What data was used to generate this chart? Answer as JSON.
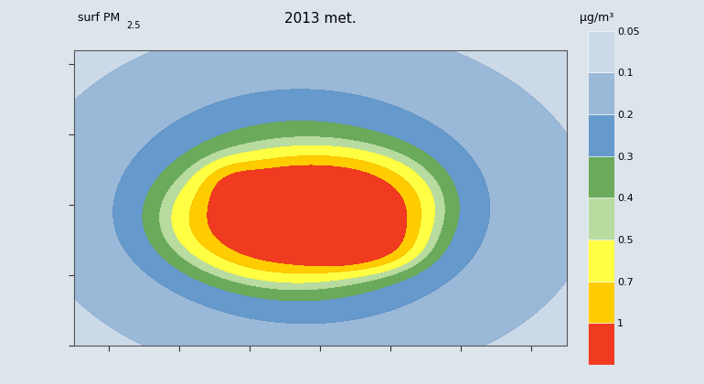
{
  "title": "2013 met.",
  "label_left": "surf PM",
  "label_left_sub": "2.5",
  "label_right": "μg/m³",
  "colorbar_tick_labels": [
    "0.05",
    "0.1",
    "0.2",
    "0.3",
    "0.4",
    "0.5",
    "0.7",
    "1"
  ],
  "colorbar_colors": [
    "#ccd9e8",
    "#9ab8d8",
    "#6699cc",
    "#6aaa5a",
    "#b8dca0",
    "#ffff44",
    "#ffcc00",
    "#f03b20"
  ],
  "contour_levels": [
    0.05,
    0.1,
    0.2,
    0.3,
    0.4,
    0.5,
    0.7,
    1.0,
    2.0
  ],
  "extent": [
    -25,
    45,
    30,
    72
  ],
  "figure_bg": "#dce4ec",
  "map_bg": "#c8d4e0",
  "border_color": "#444444",
  "tick_color": "#333333"
}
